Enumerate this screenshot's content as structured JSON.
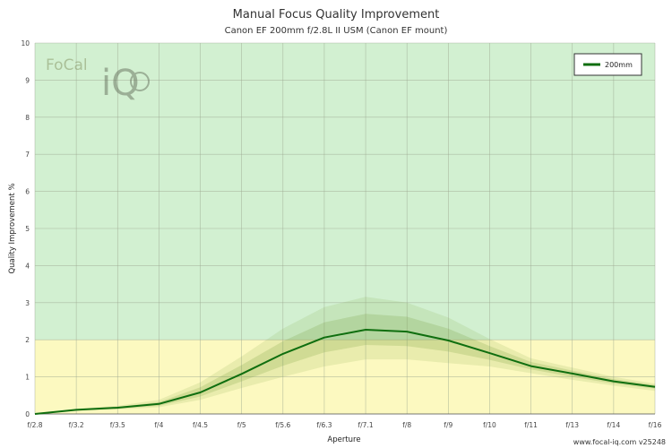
{
  "header": {
    "title": "Manual Focus Quality Improvement",
    "subtitle": "Canon EF 200mm f/2.8L II USM (Canon EF mount)"
  },
  "logo": {
    "text_a": "Fo",
    "text_b": "Cal",
    "text_c": "iQ"
  },
  "credit": "www.focal-iq.com v25248",
  "colors": {
    "good_zone": "#d2f0d1",
    "warn_zone": "#fcf9c0",
    "line": "#0f6e0f",
    "band_inner": "rgba(120,160,60,0.22)",
    "band_outer": "rgba(120,160,60,0.14)"
  },
  "chart_data": {
    "type": "line",
    "xlabel": "Aperture",
    "ylabel": "Quality Improvement %",
    "categories": [
      "f/2.8",
      "f/3.2",
      "f/3.5",
      "f/4",
      "f/4.5",
      "f/5",
      "f/5.6",
      "f/6.3",
      "f/7.1",
      "f/8",
      "f/9",
      "f/10",
      "f/11",
      "f/13",
      "f/14",
      "f/16"
    ],
    "ylim": [
      0,
      10
    ],
    "yticks": [
      0,
      1,
      2,
      3,
      4,
      5,
      6,
      7,
      8,
      9,
      10
    ],
    "grid": true,
    "legend_position": "top-right",
    "zones": [
      {
        "from": 0,
        "to": 2,
        "color": "#fcf9c0"
      },
      {
        "from": 2,
        "to": 10,
        "color": "#d2f0d1"
      }
    ],
    "series": [
      {
        "name": "200mm",
        "values": [
          0.0,
          0.11,
          0.17,
          0.27,
          0.58,
          1.08,
          1.62,
          2.06,
          2.27,
          2.22,
          1.98,
          1.64,
          1.29,
          1.09,
          0.88,
          0.73
        ]
      }
    ],
    "band_outer": {
      "upper": [
        0.0,
        0.14,
        0.22,
        0.38,
        0.85,
        1.55,
        2.3,
        2.88,
        3.16,
        3.0,
        2.6,
        2.02,
        1.5,
        1.25,
        1.0,
        0.82
      ],
      "lower": [
        0.0,
        0.08,
        0.12,
        0.18,
        0.38,
        0.7,
        1.0,
        1.28,
        1.47,
        1.47,
        1.37,
        1.28,
        1.1,
        0.92,
        0.76,
        0.62
      ]
    },
    "band_inner": {
      "upper": [
        0.0,
        0.12,
        0.19,
        0.32,
        0.72,
        1.32,
        1.96,
        2.47,
        2.7,
        2.62,
        2.3,
        1.83,
        1.4,
        1.17,
        0.94,
        0.78
      ],
      "lower": [
        0.0,
        0.09,
        0.14,
        0.22,
        0.47,
        0.88,
        1.3,
        1.66,
        1.86,
        1.83,
        1.68,
        1.46,
        1.2,
        1.0,
        0.82,
        0.68
      ]
    }
  }
}
